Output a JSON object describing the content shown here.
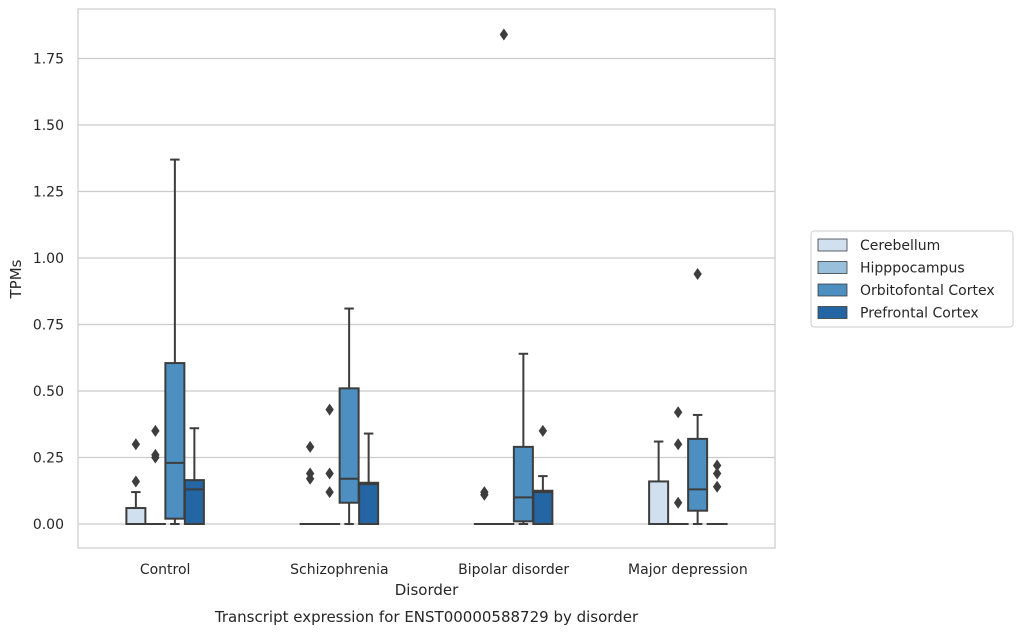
{
  "chart_data": {
    "type": "boxplot",
    "caption": "Transcript expression for ENST00000588729 by disorder",
    "xlabel": "Disorder",
    "ylabel": "TPMs",
    "ylim": [
      -0.09,
      1.94
    ],
    "yticks": [
      0.0,
      0.25,
      0.5,
      0.75,
      1.0,
      1.25,
      1.5,
      1.75
    ],
    "ytick_labels": [
      "0.00",
      "0.25",
      "0.50",
      "0.75",
      "1.00",
      "1.25",
      "1.50",
      "1.75"
    ],
    "grid": "horizontal",
    "legend_position": "right",
    "categories": [
      "Control",
      "Schizophrenia",
      "Bipolar disorder",
      "Major depression"
    ],
    "series": [
      {
        "name": "Cerebellum",
        "color": "#d0e0ef",
        "boxes": [
          {
            "q1": 0.0,
            "median": 0.0,
            "q3": 0.06,
            "whisker_low": 0.0,
            "whisker_high": 0.12,
            "outliers": [
              0.16,
              0.3
            ]
          },
          {
            "q1": 0.0,
            "median": 0.0,
            "q3": 0.0,
            "whisker_low": 0.0,
            "whisker_high": 0.0,
            "outliers": [
              0.17,
              0.19,
              0.29
            ]
          },
          {
            "q1": 0.0,
            "median": 0.0,
            "q3": 0.0,
            "whisker_low": 0.0,
            "whisker_high": 0.0,
            "outliers": [
              0.11,
              0.12
            ]
          },
          {
            "q1": 0.0,
            "median": 0.0,
            "q3": 0.16,
            "whisker_low": 0.0,
            "whisker_high": 0.31,
            "outliers": []
          }
        ]
      },
      {
        "name": "Hipppocampus",
        "color": "#98c0dd",
        "boxes": [
          {
            "q1": 0.0,
            "median": 0.0,
            "q3": 0.0,
            "whisker_low": 0.0,
            "whisker_high": 0.0,
            "outliers": [
              0.25,
              0.26,
              0.35
            ]
          },
          {
            "q1": 0.0,
            "median": 0.0,
            "q3": 0.0,
            "whisker_low": 0.0,
            "whisker_high": 0.0,
            "outliers": [
              0.12,
              0.19,
              0.43
            ]
          },
          {
            "q1": 0.0,
            "median": 0.0,
            "q3": 0.0,
            "whisker_low": 0.0,
            "whisker_high": 0.0,
            "outliers": [
              1.84
            ]
          },
          {
            "q1": 0.0,
            "median": 0.0,
            "q3": 0.0,
            "whisker_low": 0.0,
            "whisker_high": 0.0,
            "outliers": [
              0.08,
              0.3,
              0.42
            ]
          }
        ]
      },
      {
        "name": "Orbitofontal Cortex",
        "color": "#4d8fc1",
        "boxes": [
          {
            "q1": 0.02,
            "median": 0.23,
            "q3": 0.605,
            "whisker_low": 0.0,
            "whisker_high": 1.37,
            "outliers": []
          },
          {
            "q1": 0.08,
            "median": 0.17,
            "q3": 0.51,
            "whisker_low": 0.0,
            "whisker_high": 0.81,
            "outliers": []
          },
          {
            "q1": 0.01,
            "median": 0.1,
            "q3": 0.29,
            "whisker_low": 0.0,
            "whisker_high": 0.64,
            "outliers": []
          },
          {
            "q1": 0.05,
            "median": 0.13,
            "q3": 0.32,
            "whisker_low": 0.0,
            "whisker_high": 0.41,
            "outliers": [
              0.94
            ]
          }
        ]
      },
      {
        "name": "Prefrontal Cortex",
        "color": "#2465a4",
        "boxes": [
          {
            "q1": 0.0,
            "median": 0.13,
            "q3": 0.165,
            "whisker_low": 0.0,
            "whisker_high": 0.36,
            "outliers": []
          },
          {
            "q1": 0.0,
            "median": 0.15,
            "q3": 0.155,
            "whisker_low": 0.0,
            "whisker_high": 0.34,
            "outliers": []
          },
          {
            "q1": 0.0,
            "median": 0.12,
            "q3": 0.125,
            "whisker_low": 0.0,
            "whisker_high": 0.18,
            "outliers": [
              0.35
            ]
          },
          {
            "q1": 0.0,
            "median": 0.0,
            "q3": 0.0,
            "whisker_low": 0.0,
            "whisker_high": 0.0,
            "outliers": [
              0.14,
              0.19,
              0.22
            ]
          }
        ]
      }
    ]
  }
}
